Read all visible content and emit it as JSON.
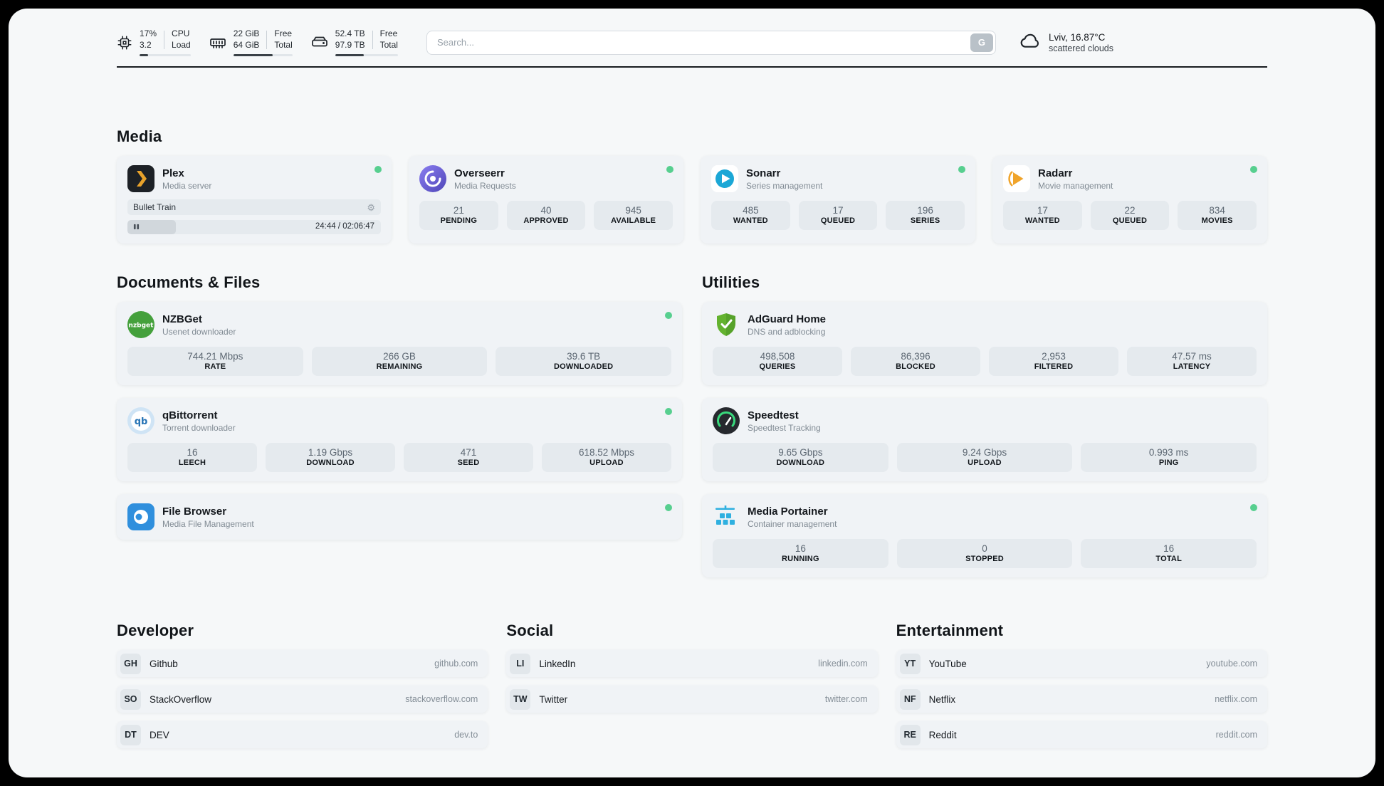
{
  "theme": {
    "green": "#57cf8f",
    "panel_bg": "#f6f8f9",
    "card_bg": "#f0f3f6",
    "stat_bg": "#e5eaee"
  },
  "header": {
    "cpu": {
      "value1": "17%",
      "value2": "3.2",
      "label1": "CPU",
      "label2": "Load",
      "progress": 17
    },
    "ram": {
      "value1": "22 GiB",
      "value2": "64 GiB",
      "label1": "Free",
      "label2": "Total",
      "progress": 66
    },
    "disk": {
      "value1": "52.4 TB",
      "value2": "97.9 TB",
      "label1": "Free",
      "label2": "Total",
      "progress": 46
    },
    "search": {
      "placeholder": "Search...",
      "button_label": "G"
    },
    "weather": {
      "location": "Lviv, 16.87°C",
      "condition": "scattered clouds"
    }
  },
  "sections": {
    "media": {
      "title": "Media",
      "plex": {
        "name": "Plex",
        "subtitle": "Media server",
        "now_playing": "Bullet Train",
        "time": "24:44 / 02:06:47",
        "progress": 19
      },
      "overseerr": {
        "name": "Overseerr",
        "subtitle": "Media Requests",
        "stats": [
          {
            "value": "21",
            "label": "PENDING"
          },
          {
            "value": "40",
            "label": "APPROVED"
          },
          {
            "value": "945",
            "label": "AVAILABLE"
          }
        ]
      },
      "sonarr": {
        "name": "Sonarr",
        "subtitle": "Series management",
        "stats": [
          {
            "value": "485",
            "label": "WANTED"
          },
          {
            "value": "17",
            "label": "QUEUED"
          },
          {
            "value": "196",
            "label": "SERIES"
          }
        ]
      },
      "radarr": {
        "name": "Radarr",
        "subtitle": "Movie management",
        "stats": [
          {
            "value": "17",
            "label": "WANTED"
          },
          {
            "value": "22",
            "label": "QUEUED"
          },
          {
            "value": "834",
            "label": "MOVIES"
          }
        ]
      }
    },
    "documents": {
      "title": "Documents & Files",
      "nzbget": {
        "name": "NZBGet",
        "subtitle": "Usenet downloader",
        "stats": [
          {
            "value": "744.21 Mbps",
            "label": "RATE"
          },
          {
            "value": "266 GB",
            "label": "REMAINING"
          },
          {
            "value": "39.6 TB",
            "label": "DOWNLOADED"
          }
        ]
      },
      "qbittorrent": {
        "name": "qBittorrent",
        "subtitle": "Torrent downloader",
        "stats": [
          {
            "value": "16",
            "label": "LEECH"
          },
          {
            "value": "1.19 Gbps",
            "label": "DOWNLOAD"
          },
          {
            "value": "471",
            "label": "SEED"
          },
          {
            "value": "618.52 Mbps",
            "label": "UPLOAD"
          }
        ]
      },
      "filebrowser": {
        "name": "File Browser",
        "subtitle": "Media File Management"
      }
    },
    "utilities": {
      "title": "Utilities",
      "adguard": {
        "name": "AdGuard Home",
        "subtitle": "DNS and adblocking",
        "stats": [
          {
            "value": "498,508",
            "label": "QUERIES"
          },
          {
            "value": "86,396",
            "label": "BLOCKED"
          },
          {
            "value": "2,953",
            "label": "FILTERED"
          },
          {
            "value": "47.57 ms",
            "label": "LATENCY"
          }
        ]
      },
      "speedtest": {
        "name": "Speedtest",
        "subtitle": "Speedtest Tracking",
        "stats": [
          {
            "value": "9.65 Gbps",
            "label": "DOWNLOAD"
          },
          {
            "value": "9.24 Gbps",
            "label": "UPLOAD"
          },
          {
            "value": "0.993 ms",
            "label": "PING"
          }
        ]
      },
      "portainer": {
        "name": "Media Portainer",
        "subtitle": "Container management",
        "stats": [
          {
            "value": "16",
            "label": "RUNNING"
          },
          {
            "value": "0",
            "label": "STOPPED"
          },
          {
            "value": "16",
            "label": "TOTAL"
          }
        ]
      }
    },
    "developer": {
      "title": "Developer",
      "links": [
        {
          "badge": "GH",
          "name": "Github",
          "url": "github.com"
        },
        {
          "badge": "SO",
          "name": "StackOverflow",
          "url": "stackoverflow.com"
        },
        {
          "badge": "DT",
          "name": "DEV",
          "url": "dev.to"
        }
      ]
    },
    "social": {
      "title": "Social",
      "links": [
        {
          "badge": "LI",
          "name": "LinkedIn",
          "url": "linkedin.com"
        },
        {
          "badge": "TW",
          "name": "Twitter",
          "url": "twitter.com"
        }
      ]
    },
    "entertainment": {
      "title": "Entertainment",
      "links": [
        {
          "badge": "YT",
          "name": "YouTube",
          "url": "youtube.com"
        },
        {
          "badge": "NF",
          "name": "Netflix",
          "url": "netflix.com"
        },
        {
          "badge": "RE",
          "name": "Reddit",
          "url": "reddit.com"
        }
      ]
    }
  }
}
